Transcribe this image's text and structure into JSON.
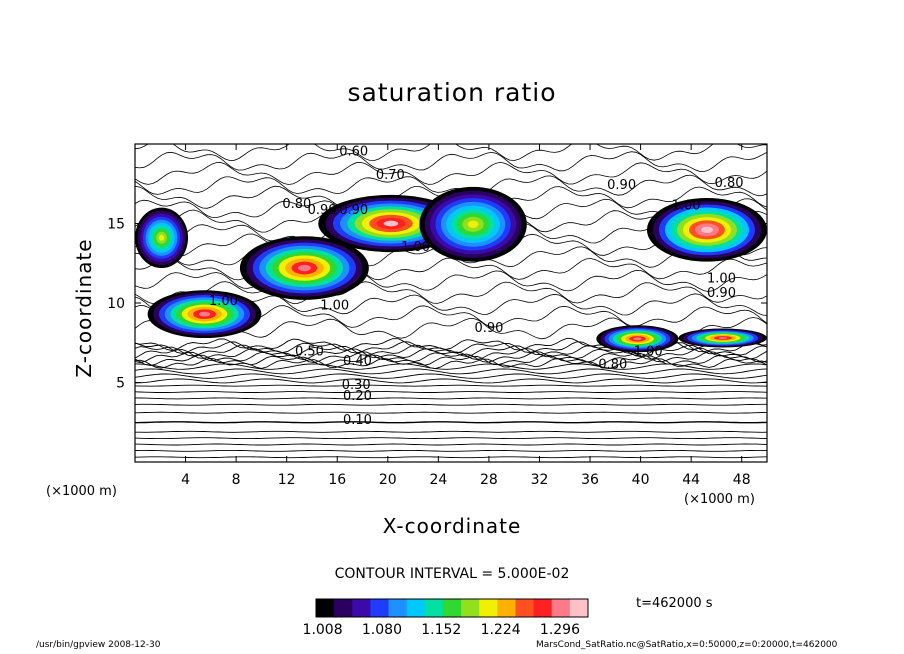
{
  "chart_data": {
    "type": "heatmap",
    "title": "saturation ratio",
    "xlabel": "X-coordinate",
    "ylabel": "Z-coordinate",
    "x_unit": "(×1000 m)",
    "y_unit": "(×1000 m)",
    "xlim": [
      0,
      50
    ],
    "ylim": [
      0,
      20
    ],
    "x_ticks": [
      4,
      8,
      12,
      16,
      20,
      24,
      28,
      32,
      36,
      40,
      44,
      48
    ],
    "y_ticks": [
      5,
      10,
      15
    ],
    "contour_interval_text": "CONTOUR INTERVAL = 5.000E-02",
    "time_text": "t=462000 s",
    "colorbar": {
      "range": [
        1.0,
        1.33
      ],
      "tick_values": [
        1.008,
        1.08,
        1.152,
        1.224,
        1.296
      ],
      "tick_labels": [
        "1.008",
        "1.080",
        "1.152",
        "1.224",
        "1.296"
      ],
      "colors": [
        "#000000",
        "#2a0060",
        "#3b0aa8",
        "#1e3cff",
        "#1e90ff",
        "#00c8ff",
        "#00e0a0",
        "#30d830",
        "#90e020",
        "#f0f000",
        "#ffb000",
        "#ff5020",
        "#ff2020",
        "#ff7a88",
        "#ffc0c8"
      ]
    },
    "contour_labels": [
      {
        "text": "0.60",
        "x": 17.3,
        "z": 19.6
      },
      {
        "text": "0.70",
        "x": 20.2,
        "z": 18.1
      },
      {
        "text": "0.80",
        "x": 47.0,
        "z": 17.6
      },
      {
        "text": "0.90",
        "x": 38.5,
        "z": 17.5
      },
      {
        "text": "0.80",
        "x": 12.8,
        "z": 16.3
      },
      {
        "text": "0.90",
        "x": 14.8,
        "z": 15.9
      },
      {
        "text": "0.90",
        "x": 17.3,
        "z": 15.9
      },
      {
        "text": "1.00",
        "x": 43.6,
        "z": 16.2
      },
      {
        "text": "1.00",
        "x": 22.2,
        "z": 13.6
      },
      {
        "text": "1.00",
        "x": 7.0,
        "z": 10.2
      },
      {
        "text": "1.00",
        "x": 15.8,
        "z": 9.9
      },
      {
        "text": "1.00",
        "x": 46.4,
        "z": 11.6
      },
      {
        "text": "0.90",
        "x": 46.4,
        "z": 10.7
      },
      {
        "text": "0.90",
        "x": 28.0,
        "z": 8.5
      },
      {
        "text": "1.00",
        "x": 40.6,
        "z": 7.0
      },
      {
        "text": "0.80",
        "x": 37.8,
        "z": 6.2
      },
      {
        "text": "0.50",
        "x": 13.8,
        "z": 7.0
      },
      {
        "text": "0.40",
        "x": 17.6,
        "z": 6.4
      },
      {
        "text": "0.30",
        "x": 17.5,
        "z": 4.9
      },
      {
        "text": "0.20",
        "x": 17.6,
        "z": 4.2
      },
      {
        "text": "0.10",
        "x": 17.6,
        "z": 2.7
      }
    ],
    "high_regions": [
      {
        "x": [
          0,
          4.2
        ],
        "z": [
          12.2,
          16.0
        ],
        "peak": 1.22
      },
      {
        "x": [
          8.3,
          18.5
        ],
        "z": [
          10.2,
          14.2
        ],
        "peak": 1.3
      },
      {
        "x": [
          14.5,
          26.0
        ],
        "z": [
          13.2,
          16.8
        ],
        "peak": 1.32
      },
      {
        "x": [
          22.5,
          31.0
        ],
        "z": [
          12.6,
          17.3
        ],
        "peak": 1.22
      },
      {
        "x": [
          1.0,
          10.0
        ],
        "z": [
          7.8,
          10.8
        ],
        "peak": 1.3
      },
      {
        "x": [
          40.5,
          50.0
        ],
        "z": [
          12.6,
          16.6
        ],
        "peak": 1.33
      },
      {
        "x": [
          36.5,
          43.0
        ],
        "z": [
          6.9,
          8.6
        ],
        "peak": 1.3
      },
      {
        "x": [
          43.0,
          50.0
        ],
        "z": [
          7.2,
          8.4
        ],
        "peak": 1.3
      }
    ]
  },
  "footer": {
    "left": "/usr/bin/gpview   2008-12-30",
    "right": "MarsCond_SatRatio.nc@SatRatio,x=0:50000,z=0:20000,t=462000"
  }
}
